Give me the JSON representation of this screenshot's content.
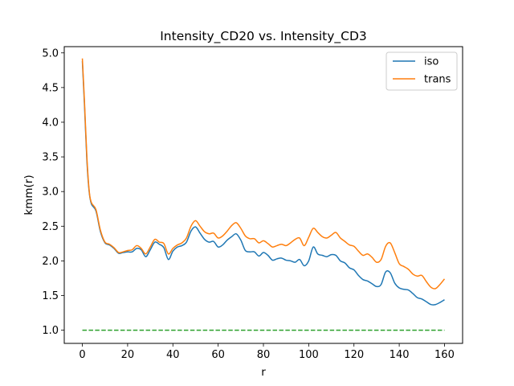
{
  "chart_data": {
    "type": "line",
    "title": "Intensity_CD20 vs. Intensity_CD3",
    "xlabel": "r",
    "ylabel": "kmm(r)",
    "xlim": [
      -8,
      168
    ],
    "ylim": [
      0.81,
      5.09
    ],
    "xticks": [
      "0",
      "20",
      "40",
      "60",
      "80",
      "100",
      "120",
      "140",
      "160"
    ],
    "yticks": [
      "1.0",
      "1.5",
      "2.0",
      "2.5",
      "3.0",
      "3.5",
      "4.0",
      "4.5",
      "5.0"
    ],
    "legend_position": "top-right",
    "grid": false,
    "series": [
      {
        "name": "iso",
        "color": "#1f77b4",
        "x": [
          0,
          1,
          2,
          3,
          4,
          6,
          8,
          10,
          12,
          14,
          16,
          18,
          20,
          22,
          24,
          26,
          28,
          30,
          32,
          34,
          36,
          38,
          40,
          42,
          44,
          46,
          48,
          50,
          52,
          54,
          56,
          58,
          60,
          62,
          64,
          66,
          68,
          70,
          72,
          74,
          76,
          78,
          80,
          82,
          84,
          86,
          88,
          90,
          92,
          94,
          96,
          98,
          100,
          102,
          104,
          106,
          108,
          110,
          112,
          114,
          116,
          118,
          120,
          122,
          124,
          126,
          128,
          130,
          132,
          134,
          136,
          138,
          140,
          142,
          144,
          146,
          148,
          150,
          152,
          154,
          156,
          158,
          160
        ],
        "y": [
          4.88,
          4.2,
          3.45,
          3.0,
          2.82,
          2.72,
          2.42,
          2.26,
          2.23,
          2.18,
          2.11,
          2.12,
          2.13,
          2.13,
          2.18,
          2.16,
          2.06,
          2.16,
          2.27,
          2.24,
          2.19,
          2.02,
          2.14,
          2.2,
          2.22,
          2.27,
          2.43,
          2.49,
          2.4,
          2.31,
          2.27,
          2.28,
          2.2,
          2.23,
          2.3,
          2.35,
          2.39,
          2.3,
          2.15,
          2.13,
          2.13,
          2.07,
          2.12,
          2.08,
          2.01,
          2.03,
          2.04,
          2.01,
          2.0,
          1.98,
          2.02,
          1.93,
          2.0,
          2.2,
          2.1,
          2.08,
          2.06,
          2.09,
          2.08,
          2.0,
          1.97,
          1.9,
          1.87,
          1.79,
          1.73,
          1.71,
          1.67,
          1.63,
          1.66,
          1.84,
          1.83,
          1.68,
          1.61,
          1.59,
          1.58,
          1.53,
          1.47,
          1.45,
          1.41,
          1.37,
          1.37,
          1.4,
          1.44
        ]
      },
      {
        "name": "trans",
        "color": "#ff7f0e",
        "x": [
          0,
          1,
          2,
          3,
          4,
          6,
          8,
          10,
          12,
          14,
          16,
          18,
          20,
          22,
          24,
          26,
          28,
          30,
          32,
          34,
          36,
          38,
          40,
          42,
          44,
          46,
          48,
          50,
          52,
          54,
          56,
          58,
          60,
          62,
          64,
          66,
          68,
          70,
          72,
          74,
          76,
          78,
          80,
          82,
          84,
          86,
          88,
          90,
          92,
          94,
          96,
          98,
          100,
          102,
          104,
          106,
          108,
          110,
          112,
          114,
          116,
          118,
          120,
          122,
          124,
          126,
          128,
          130,
          132,
          134,
          136,
          138,
          140,
          142,
          144,
          146,
          148,
          150,
          152,
          154,
          156,
          158,
          160
        ],
        "y": [
          4.92,
          4.25,
          3.5,
          3.02,
          2.84,
          2.74,
          2.44,
          2.27,
          2.24,
          2.19,
          2.12,
          2.13,
          2.15,
          2.16,
          2.22,
          2.18,
          2.1,
          2.2,
          2.31,
          2.27,
          2.25,
          2.1,
          2.18,
          2.23,
          2.26,
          2.33,
          2.5,
          2.58,
          2.5,
          2.42,
          2.39,
          2.4,
          2.33,
          2.36,
          2.43,
          2.51,
          2.55,
          2.47,
          2.36,
          2.32,
          2.32,
          2.26,
          2.29,
          2.25,
          2.2,
          2.22,
          2.24,
          2.22,
          2.26,
          2.31,
          2.33,
          2.22,
          2.34,
          2.47,
          2.41,
          2.35,
          2.33,
          2.37,
          2.41,
          2.33,
          2.28,
          2.23,
          2.21,
          2.14,
          2.08,
          2.1,
          2.05,
          1.98,
          2.02,
          2.21,
          2.26,
          2.12,
          1.96,
          1.92,
          1.88,
          1.81,
          1.78,
          1.79,
          1.7,
          1.62,
          1.6,
          1.66,
          1.74
        ]
      },
      {
        "name": "",
        "color": "#2ca02c",
        "dashed": true,
        "x": [
          0,
          160
        ],
        "y": [
          1.0,
          1.0
        ]
      }
    ]
  }
}
